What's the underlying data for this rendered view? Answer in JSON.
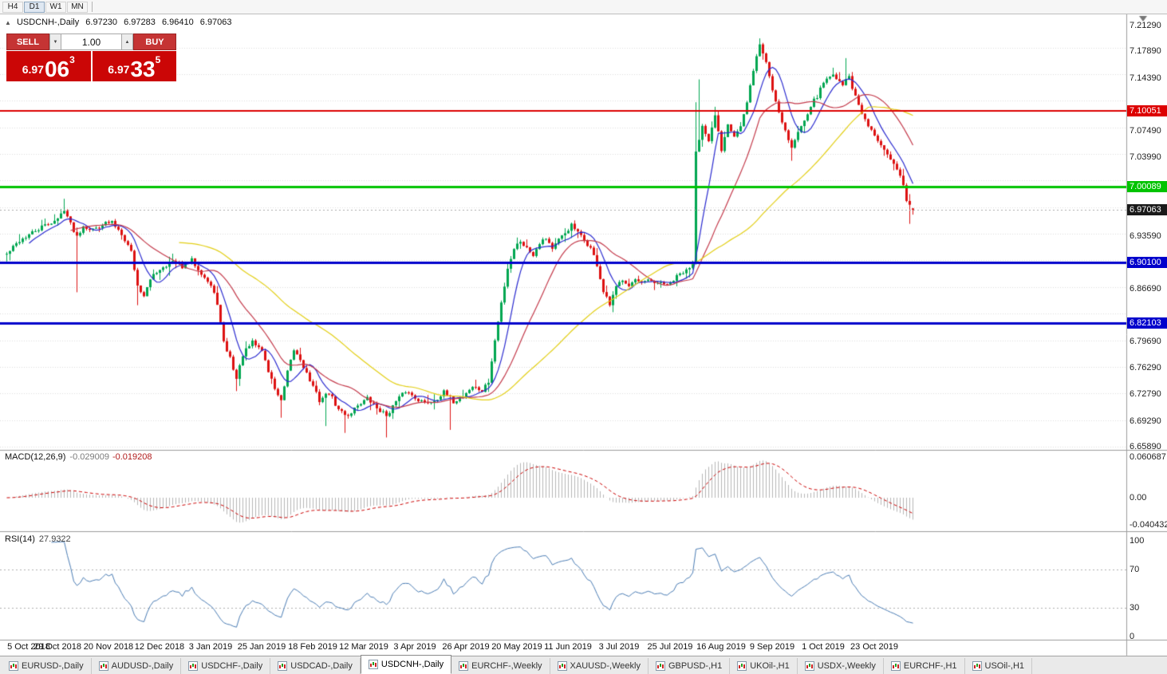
{
  "icons": {
    "collapse": "▲",
    "spinner_down": "▼",
    "spinner_up": "▲"
  },
  "toolbar": {
    "timeframes": [
      {
        "label": "H4",
        "active": false
      },
      {
        "label": "D1",
        "active": true
      },
      {
        "label": "W1",
        "active": false
      },
      {
        "label": "MN",
        "active": false
      }
    ]
  },
  "chart_header": {
    "symbol": "USDCNH-,Daily",
    "open": "6.97230",
    "high": "6.97283",
    "low": "6.96410",
    "close": "6.97063"
  },
  "trade_panel": {
    "sell_label": "SELL",
    "buy_label": "BUY",
    "volume": "1.00",
    "sell_price": {
      "big": "6.97",
      "pips": "06",
      "pt": "3"
    },
    "buy_price": {
      "big": "6.97",
      "pips": "33",
      "pt": "5"
    }
  },
  "macd_panel": {
    "label": "MACD(12,26,9)",
    "value_main": "-0.029009",
    "value_signal": "-0.019208",
    "axis": [
      "0.060687",
      "0.00",
      "-0.040432"
    ]
  },
  "rsi_panel": {
    "label": "RSI(14)",
    "value": "27.9322",
    "axis": [
      "100",
      "70",
      "30",
      "0"
    ]
  },
  "price_scale": {
    "ticks": [
      "7.21290",
      "7.17890",
      "7.14390",
      "7.07490",
      "7.03990",
      "6.93590",
      "6.86690",
      "6.79690",
      "6.76290",
      "6.72790",
      "6.69290",
      "6.65890"
    ],
    "badges": [
      {
        "text": "7.10051",
        "price": 7.10051,
        "color": "#dd0000",
        "kind": "level"
      },
      {
        "text": "7.00089",
        "price": 7.00089,
        "color": "#00c300",
        "kind": "level"
      },
      {
        "text": "6.97063",
        "price": 6.97063,
        "color": "#1a1a1a",
        "kind": "current"
      },
      {
        "text": "6.90100",
        "price": 6.901,
        "color": "#0000cc",
        "kind": "level"
      },
      {
        "text": "6.82103",
        "price": 6.82103,
        "color": "#0000cc",
        "kind": "level"
      }
    ]
  },
  "time_axis": [
    {
      "label": "5 Oct 2018",
      "i": 0
    },
    {
      "label": "29 Oct 2018",
      "i": 16
    },
    {
      "label": "20 Nov 2018",
      "i": 32
    },
    {
      "label": "12 Dec 2018",
      "i": 48
    },
    {
      "label": "3 Jan 2019",
      "i": 64
    },
    {
      "label": "25 Jan 2019",
      "i": 80
    },
    {
      "label": "18 Feb 2019",
      "i": 96
    },
    {
      "label": "12 Mar 2019",
      "i": 112
    },
    {
      "label": "3 Apr 2019",
      "i": 128
    },
    {
      "label": "26 Apr 2019",
      "i": 144
    },
    {
      "label": "20 May 2019",
      "i": 160
    },
    {
      "label": "11 Jun 2019",
      "i": 176
    },
    {
      "label": "3 Jul 2019",
      "i": 192
    },
    {
      "label": "25 Jul 2019",
      "i": 208
    },
    {
      "label": "16 Aug 2019",
      "i": 224
    },
    {
      "label": "9 Sep 2019",
      "i": 240
    },
    {
      "label": "1 Oct 2019",
      "i": 256
    },
    {
      "label": "23 Oct 2019",
      "i": 272
    }
  ],
  "bottom_tabs": [
    {
      "label": "EURUSD-,Daily",
      "active": false
    },
    {
      "label": "AUDUSD-,Daily",
      "active": false
    },
    {
      "label": "USDCHF-,Daily",
      "active": false
    },
    {
      "label": "USDCAD-,Daily",
      "active": false
    },
    {
      "label": "USDCNH-,Daily",
      "active": true
    },
    {
      "label": "EURCHF-,Weekly",
      "active": false
    },
    {
      "label": "XAUUSD-,Weekly",
      "active": false
    },
    {
      "label": "GBPUSD-,H1",
      "active": false
    },
    {
      "label": "UKOil-,H1",
      "active": false
    },
    {
      "label": "USDX-,Weekly",
      "active": false
    },
    {
      "label": "EURCHF-,H1",
      "active": false
    },
    {
      "label": "USOil-,H1",
      "active": false
    }
  ],
  "colors": {
    "candle_up": "#00a651",
    "candle_down": "#dd1111",
    "ma_fast": "#2b2bd0",
    "ma_mid": "#c43a4b",
    "ma_slow": "#e3cf15",
    "macd_histogram": "#b6b6b6",
    "macd_signal": "#cc0000",
    "rsi_line": "#4b7db5",
    "grid": "#dcdcdc",
    "level_red": "#dd0000",
    "level_green": "#00c300",
    "level_blue": "#0000cc"
  },
  "chart_data": {
    "type": "candlestick",
    "symbol": "USDCNH",
    "timeframe": "Daily",
    "y_range": [
      6.6589,
      7.2129
    ],
    "x_range": [
      "5 Oct 2018",
      "1 Nov 2019"
    ],
    "current_ohlc": {
      "open": 6.9723,
      "high": 6.97283,
      "low": 6.9641,
      "close": 6.97063
    },
    "current_price": 6.97063,
    "horizontal_levels": [
      {
        "price": 7.10051,
        "color": "#dd0000",
        "width": 2
      },
      {
        "price": 7.00089,
        "color": "#00c300",
        "width": 3
      },
      {
        "price": 6.901,
        "color": "#0000cc",
        "width": 3
      },
      {
        "price": 6.82103,
        "color": "#0000cc",
        "width": 3
      }
    ],
    "moving_averages": [
      {
        "period": 8,
        "color": "#2b2bd0"
      },
      {
        "period": 21,
        "color": "#c43a4b"
      },
      {
        "period": 55,
        "color": "#e3cf15"
      }
    ],
    "indicators": [
      {
        "name": "MACD",
        "params": [
          12,
          26,
          9
        ],
        "values": [
          -0.029009,
          -0.019208
        ],
        "axis_range": [
          -0.040432,
          0.060687
        ]
      },
      {
        "name": "RSI",
        "params": [
          14
        ],
        "value": 27.9322,
        "levels": [
          30,
          70
        ],
        "axis_range": [
          0,
          100
        ]
      }
    ],
    "price_path": [
      [
        0,
        6.912
      ],
      [
        4,
        6.93
      ],
      [
        8,
        6.94
      ],
      [
        12,
        6.95
      ],
      [
        16,
        6.958
      ],
      [
        18,
        6.972
      ],
      [
        20,
        6.952
      ],
      [
        22,
        6.936
      ],
      [
        24,
        6.95
      ],
      [
        27,
        6.944
      ],
      [
        30,
        6.952
      ],
      [
        33,
        6.954
      ],
      [
        36,
        6.94
      ],
      [
        39,
        6.916
      ],
      [
        41,
        6.87
      ],
      [
        43,
        6.858
      ],
      [
        46,
        6.886
      ],
      [
        49,
        6.896
      ],
      [
        52,
        6.902
      ],
      [
        55,
        6.896
      ],
      [
        58,
        6.904
      ],
      [
        61,
        6.888
      ],
      [
        64,
        6.87
      ],
      [
        66,
        6.848
      ],
      [
        68,
        6.795
      ],
      [
        70,
        6.776
      ],
      [
        72,
        6.748
      ],
      [
        74,
        6.78
      ],
      [
        77,
        6.796
      ],
      [
        80,
        6.786
      ],
      [
        82,
        6.758
      ],
      [
        84,
        6.736
      ],
      [
        86,
        6.718
      ],
      [
        88,
        6.756
      ],
      [
        90,
        6.786
      ],
      [
        92,
        6.774
      ],
      [
        95,
        6.746
      ],
      [
        98,
        6.72
      ],
      [
        101,
        6.73
      ],
      [
        104,
        6.707
      ],
      [
        107,
        6.7
      ],
      [
        110,
        6.714
      ],
      [
        113,
        6.722
      ],
      [
        116,
        6.71
      ],
      [
        119,
        6.7
      ],
      [
        122,
        6.718
      ],
      [
        125,
        6.732
      ],
      [
        128,
        6.724
      ],
      [
        131,
        6.716
      ],
      [
        134,
        6.72
      ],
      [
        137,
        6.73
      ],
      [
        140,
        6.718
      ],
      [
        143,
        6.726
      ],
      [
        146,
        6.738
      ],
      [
        149,
        6.732
      ],
      [
        151,
        6.744
      ],
      [
        153,
        6.798
      ],
      [
        155,
        6.848
      ],
      [
        157,
        6.894
      ],
      [
        159,
        6.92
      ],
      [
        161,
        6.93
      ],
      [
        163,
        6.92
      ],
      [
        165,
        6.912
      ],
      [
        167,
        6.928
      ],
      [
        169,
        6.934
      ],
      [
        171,
        6.92
      ],
      [
        173,
        6.93
      ],
      [
        175,
        6.94
      ],
      [
        177,
        6.95
      ],
      [
        179,
        6.94
      ],
      [
        181,
        6.93
      ],
      [
        183,
        6.92
      ],
      [
        185,
        6.898
      ],
      [
        187,
        6.862
      ],
      [
        189,
        6.845
      ],
      [
        191,
        6.868
      ],
      [
        193,
        6.88
      ],
      [
        195,
        6.872
      ],
      [
        197,
        6.878
      ],
      [
        199,
        6.872
      ],
      [
        201,
        6.878
      ],
      [
        203,
        6.872
      ],
      [
        205,
        6.876
      ],
      [
        207,
        6.87
      ],
      [
        209,
        6.878
      ],
      [
        211,
        6.886
      ],
      [
        213,
        6.89
      ],
      [
        215,
        6.902
      ],
      [
        216,
        7.05
      ],
      [
        218,
        7.08
      ],
      [
        220,
        7.058
      ],
      [
        222,
        7.095
      ],
      [
        224,
        7.05
      ],
      [
        226,
        7.085
      ],
      [
        228,
        7.068
      ],
      [
        230,
        7.08
      ],
      [
        232,
        7.11
      ],
      [
        234,
        7.155
      ],
      [
        236,
        7.188
      ],
      [
        238,
        7.165
      ],
      [
        240,
        7.128
      ],
      [
        242,
        7.1
      ],
      [
        244,
        7.075
      ],
      [
        246,
        7.052
      ],
      [
        248,
        7.072
      ],
      [
        250,
        7.09
      ],
      [
        252,
        7.108
      ],
      [
        254,
        7.12
      ],
      [
        256,
        7.138
      ],
      [
        258,
        7.148
      ],
      [
        260,
        7.145
      ],
      [
        262,
        7.136
      ],
      [
        264,
        7.146
      ],
      [
        266,
        7.118
      ],
      [
        268,
        7.096
      ],
      [
        270,
        7.08
      ],
      [
        272,
        7.068
      ],
      [
        274,
        7.058
      ],
      [
        276,
        7.046
      ],
      [
        278,
        7.03
      ],
      [
        280,
        7.015
      ],
      [
        282,
        6.985
      ],
      [
        284,
        6.9706
      ]
    ],
    "wick_spikes": [
      {
        "i": 18,
        "h": 6.985
      },
      {
        "i": 22,
        "l": 6.862
      },
      {
        "i": 41,
        "l": 6.845
      },
      {
        "i": 72,
        "l": 6.732
      },
      {
        "i": 86,
        "l": 6.697
      },
      {
        "i": 100,
        "l": 6.686
      },
      {
        "i": 106,
        "l": 6.677
      },
      {
        "i": 119,
        "l": 6.671
      },
      {
        "i": 139,
        "l": 6.681
      },
      {
        "i": 216,
        "l": 6.928,
        "h": 7.112
      },
      {
        "i": 217,
        "h": 7.142
      },
      {
        "i": 222,
        "h": 7.106
      },
      {
        "i": 236,
        "h": 7.196
      },
      {
        "i": 246,
        "l": 7.035
      },
      {
        "i": 263,
        "h": 7.17
      },
      {
        "i": 283,
        "l": 6.952
      }
    ]
  }
}
